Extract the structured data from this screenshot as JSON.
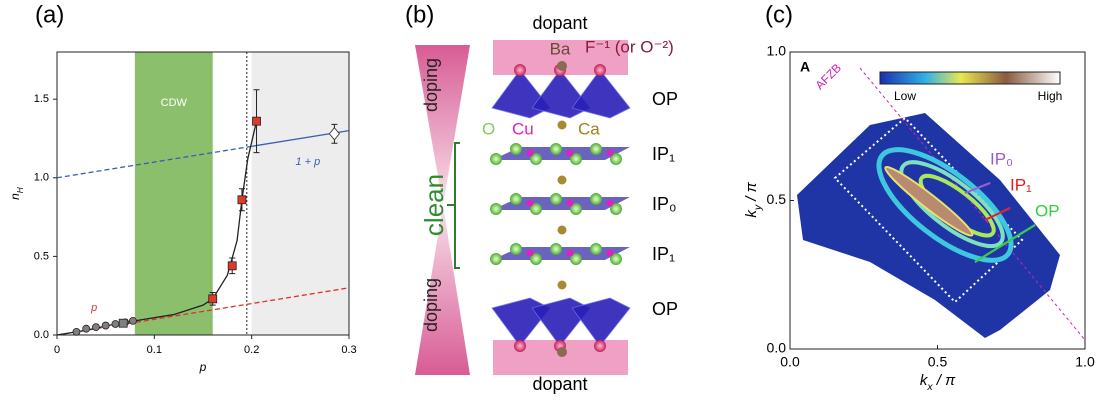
{
  "chart_data": [
    {
      "type": "scatter",
      "panel_label": "(a)",
      "xlabel": "p",
      "ylabel": [
        "n",
        "H"
      ],
      "xlim": [
        0,
        0.3
      ],
      "ylim": [
        0,
        1.8
      ],
      "xticks": [
        0,
        0.1,
        0.2,
        0.3
      ],
      "yticks": [
        {
          "value": 0,
          "label": "0.0"
        },
        0.5,
        {
          "value": 1,
          "label": "1.0"
        },
        1.5
      ],
      "bands": [
        {
          "x": [
            0.08,
            0.16
          ],
          "color": "#8cbf6c",
          "label": "CDW"
        },
        {
          "x": [
            0.2,
            0.3
          ],
          "color": "#ededed"
        }
      ],
      "vline": 0.195,
      "series": [
        {
          "kind": "line",
          "style": "dashed",
          "color": "#3a5fb0",
          "x": [
            0,
            0.2
          ],
          "values": [
            1,
            1.2
          ]
        },
        {
          "kind": "line",
          "style": "solid",
          "color": "#3a5fb0",
          "name": "1 + p",
          "x": [
            0.2,
            0.3
          ],
          "values": [
            1.2,
            1.3
          ]
        },
        {
          "kind": "line",
          "style": "dashed",
          "color": "#e03030",
          "name": "p",
          "x": [
            0,
            0.3
          ],
          "values": [
            0,
            0.3
          ]
        },
        {
          "kind": "line",
          "style": "solid",
          "color": "#222222",
          "x": [
            0,
            0.03,
            0.06,
            0.09,
            0.12,
            0.15,
            0.16,
            0.175,
            0.185,
            0.19,
            0.196,
            0.205
          ],
          "values": [
            0,
            0.03,
            0.07,
            0.1,
            0.13,
            0.19,
            0.23,
            0.38,
            0.6,
            0.86,
            1.12,
            1.36
          ]
        },
        {
          "kind": "marker",
          "marker": "circle",
          "color": "#808080",
          "x": [
            0.02,
            0.03,
            0.04,
            0.05,
            0.06,
            0.07,
            0.078
          ],
          "values": [
            0.02,
            0.04,
            0.05,
            0.06,
            0.07,
            0.08,
            0.09
          ]
        },
        {
          "kind": "marker",
          "marker": "square",
          "color": "#808080",
          "x": [
            0.068
          ],
          "values": [
            0.075
          ]
        },
        {
          "kind": "marker",
          "marker": "square",
          "color": "#e03a2a",
          "x": [
            0.16,
            0.18,
            0.19,
            0.205
          ],
          "values": [
            0.23,
            0.44,
            0.86,
            1.36
          ],
          "errors": [
            0.04,
            0.05,
            0.07,
            0.2
          ]
        },
        {
          "kind": "marker",
          "marker": "diamond",
          "color": "#ffffff",
          "x": [
            0.285
          ],
          "values": [
            1.28
          ],
          "errors": [
            0.06
          ]
        }
      ]
    },
    {
      "type": "image",
      "panel_label": "(c)",
      "xlabel": [
        "k",
        "x",
        " / π"
      ],
      "ylabel": [
        "k",
        "y",
        " / π"
      ],
      "xlim": [
        0,
        1
      ],
      "ylim": [
        0,
        1
      ],
      "xticks": [
        {
          "value": 0,
          "label": "0.0"
        },
        0.5,
        {
          "value": 1,
          "label": "1.0"
        }
      ],
      "yticks": [
        {
          "value": 0,
          "label": "0.0"
        },
        0.5,
        {
          "value": 1,
          "label": "1.0"
        }
      ],
      "inset_label": "A",
      "colorbar": [
        "Low",
        "High"
      ],
      "annotations": [
        "AFZB",
        "IP₀",
        "IP₁",
        "OP"
      ]
    }
  ],
  "diagram": {
    "panel_label": "(b)",
    "top_dopant": "dopant",
    "ba": "Ba",
    "f_label": "F⁻¹ (or O⁻²)",
    "layers": [
      "OP",
      "IP₁",
      "IP₀",
      "IP₁",
      "OP"
    ],
    "atoms": [
      "O",
      "Cu",
      "Ca"
    ],
    "side": [
      "doping",
      "clean",
      "doping"
    ],
    "bottom_dopant": "dopant"
  }
}
